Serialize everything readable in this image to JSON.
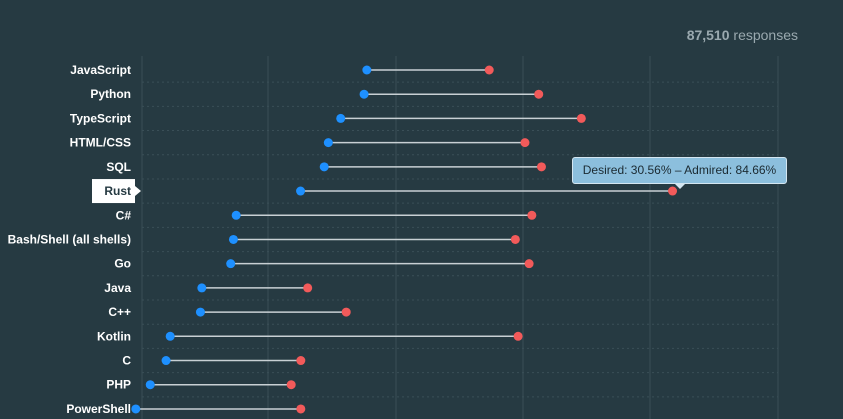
{
  "header": {
    "response_count": "87,510",
    "response_suffix": " responses"
  },
  "tooltip": {
    "text": "Desired: 30.56% – Admired: 84.66%"
  },
  "colors": {
    "background": "#263a42",
    "desired": "#1e90ff",
    "admired": "#f25a5a",
    "connector": "#c8d0d4",
    "grid": "#3a4f57"
  },
  "chart_data": {
    "type": "dumbbell",
    "title": "",
    "xlabel": "",
    "ylabel": "",
    "xlim": [
      7.5,
      100
    ],
    "active_category": "Rust",
    "series": [
      {
        "name": "Desired"
      },
      {
        "name": "Admired"
      }
    ],
    "categories": [
      "JavaScript",
      "Python",
      "TypeScript",
      "HTML/CSS",
      "SQL",
      "Rust",
      "C#",
      "Bash/Shell (all shells)",
      "Go",
      "Java",
      "C++",
      "Kotlin",
      "C",
      "PHP",
      "PowerShell"
    ],
    "desired": [
      40.2,
      39.8,
      36.4,
      34.6,
      34.0,
      30.56,
      21.2,
      20.8,
      20.4,
      16.2,
      16.0,
      11.6,
      11.0,
      8.7,
      6.6
    ],
    "admired": [
      58.0,
      65.2,
      71.4,
      63.2,
      65.6,
      84.66,
      64.2,
      61.8,
      63.8,
      31.6,
      37.2,
      62.2,
      30.6,
      29.2,
      30.6
    ]
  }
}
